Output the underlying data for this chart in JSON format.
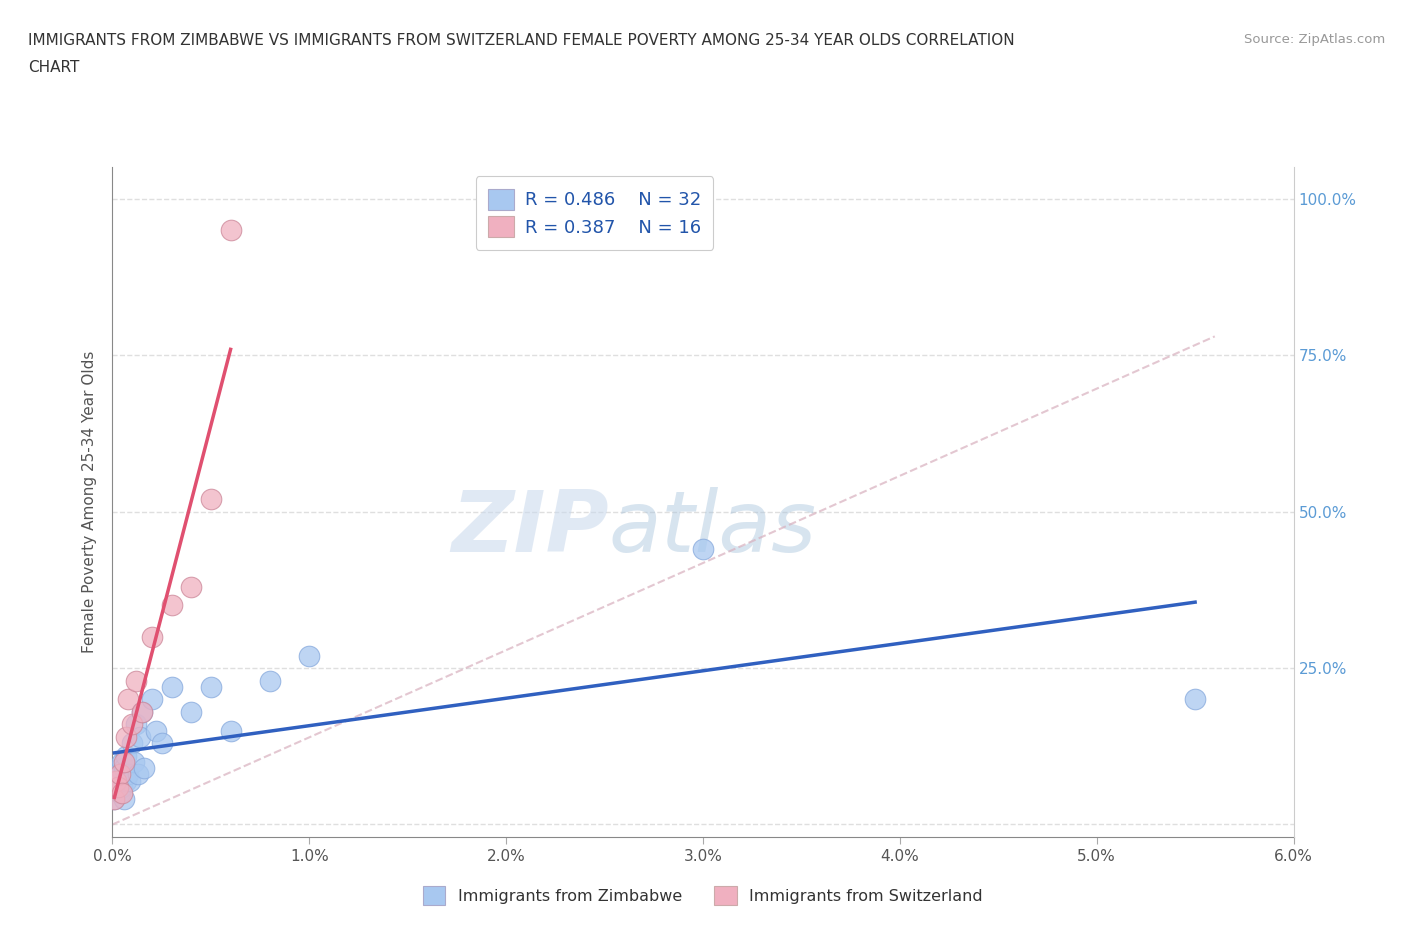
{
  "title_line1": "IMMIGRANTS FROM ZIMBABWE VS IMMIGRANTS FROM SWITZERLAND FEMALE POVERTY AMONG 25-34 YEAR OLDS CORRELATION",
  "title_line2": "CHART",
  "source": "Source: ZipAtlas.com",
  "ylabel": "Female Poverty Among 25-34 Year Olds",
  "xlim": [
    0.0,
    0.06
  ],
  "ylim": [
    -0.02,
    1.05
  ],
  "xticks": [
    0.0,
    0.01,
    0.02,
    0.03,
    0.04,
    0.05,
    0.06
  ],
  "xticklabels": [
    "0.0%",
    "1.0%",
    "2.0%",
    "3.0%",
    "4.0%",
    "5.0%",
    "6.0%"
  ],
  "yticks": [
    0.0,
    0.25,
    0.5,
    0.75,
    1.0
  ],
  "legend_r_zimbabwe": "R = 0.486",
  "legend_n_zimbabwe": "N = 32",
  "legend_r_switzerland": "R = 0.387",
  "legend_n_switzerland": "N = 16",
  "legend_label_zimbabwe": "Immigrants from Zimbabwe",
  "legend_label_switzerland": "Immigrants from Switzerland",
  "color_zimbabwe": "#a8c8f0",
  "color_switzerland": "#f0b0c0",
  "color_trendline_zimbabwe": "#3060c0",
  "color_trendline_switzerland": "#e05070",
  "color_dashed": "#d0a0b0",
  "watermark_zip": "ZIP",
  "watermark_atlas": "atlas",
  "background_color": "#ffffff",
  "grid_color": "#d8d8d8",
  "zimbabwe_x": [
    0.0001,
    0.0002,
    0.0003,
    0.0003,
    0.0004,
    0.0004,
    0.0005,
    0.0005,
    0.0006,
    0.0006,
    0.0007,
    0.0007,
    0.0008,
    0.0009,
    0.001,
    0.0011,
    0.0012,
    0.0013,
    0.0014,
    0.0015,
    0.0016,
    0.002,
    0.0022,
    0.0025,
    0.003,
    0.004,
    0.005,
    0.006,
    0.008,
    0.01,
    0.03,
    0.055
  ],
  "zimbabwe_y": [
    0.04,
    0.06,
    0.07,
    0.08,
    0.05,
    0.09,
    0.06,
    0.1,
    0.04,
    0.09,
    0.07,
    0.11,
    0.08,
    0.07,
    0.13,
    0.1,
    0.16,
    0.08,
    0.14,
    0.18,
    0.09,
    0.2,
    0.15,
    0.13,
    0.22,
    0.18,
    0.22,
    0.15,
    0.23,
    0.27,
    0.44,
    0.2
  ],
  "switzerland_x": [
    0.0001,
    0.0002,
    0.0003,
    0.0004,
    0.0005,
    0.0006,
    0.0007,
    0.0008,
    0.001,
    0.0012,
    0.0015,
    0.002,
    0.003,
    0.004,
    0.005,
    0.006
  ],
  "switzerland_y": [
    0.04,
    0.07,
    0.06,
    0.08,
    0.05,
    0.1,
    0.14,
    0.2,
    0.16,
    0.23,
    0.18,
    0.3,
    0.35,
    0.38,
    0.52,
    0.95
  ]
}
